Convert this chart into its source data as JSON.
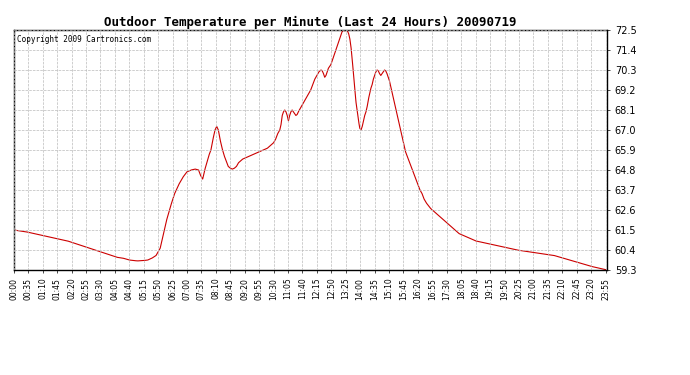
{
  "title": "Outdoor Temperature per Minute (Last 24 Hours) 20090719",
  "copyright_text": "Copyright 2009 Cartronics.com",
  "line_color": "#cc0000",
  "background_color": "#ffffff",
  "grid_color": "#aaaaaa",
  "yticks": [
    59.3,
    60.4,
    61.5,
    62.6,
    63.7,
    64.8,
    65.9,
    67.0,
    68.1,
    69.2,
    70.3,
    71.4,
    72.5
  ],
  "ylim": [
    59.3,
    72.5
  ],
  "total_minutes": 1440,
  "xtick_labels": [
    "00:00",
    "00:35",
    "01:10",
    "01:45",
    "02:20",
    "02:55",
    "03:30",
    "04:05",
    "04:40",
    "05:15",
    "05:50",
    "06:25",
    "07:00",
    "07:35",
    "08:10",
    "08:45",
    "09:20",
    "09:55",
    "10:30",
    "11:05",
    "11:40",
    "12:15",
    "12:50",
    "13:25",
    "14:00",
    "14:35",
    "15:10",
    "15:45",
    "16:20",
    "16:55",
    "17:30",
    "18:05",
    "18:40",
    "19:15",
    "19:50",
    "20:25",
    "21:00",
    "21:35",
    "22:10",
    "22:45",
    "23:20",
    "23:55"
  ],
  "control_points": [
    [
      0,
      61.5
    ],
    [
      15,
      61.45
    ],
    [
      30,
      61.4
    ],
    [
      50,
      61.3
    ],
    [
      70,
      61.2
    ],
    [
      90,
      61.1
    ],
    [
      110,
      61.0
    ],
    [
      130,
      60.9
    ],
    [
      150,
      60.75
    ],
    [
      170,
      60.6
    ],
    [
      190,
      60.45
    ],
    [
      210,
      60.3
    ],
    [
      230,
      60.15
    ],
    [
      250,
      60.0
    ],
    [
      265,
      59.95
    ],
    [
      280,
      59.85
    ],
    [
      290,
      59.82
    ],
    [
      300,
      59.8
    ],
    [
      315,
      59.82
    ],
    [
      325,
      59.85
    ],
    [
      335,
      59.95
    ],
    [
      345,
      60.1
    ],
    [
      355,
      60.5
    ],
    [
      362,
      61.2
    ],
    [
      370,
      62.0
    ],
    [
      380,
      62.8
    ],
    [
      390,
      63.5
    ],
    [
      400,
      64.0
    ],
    [
      410,
      64.4
    ],
    [
      420,
      64.7
    ],
    [
      430,
      64.8
    ],
    [
      440,
      64.85
    ],
    [
      448,
      64.8
    ],
    [
      453,
      64.5
    ],
    [
      458,
      64.3
    ],
    [
      463,
      64.8
    ],
    [
      468,
      65.2
    ],
    [
      473,
      65.6
    ],
    [
      478,
      65.9
    ],
    [
      483,
      66.5
    ],
    [
      488,
      67.0
    ],
    [
      492,
      67.2
    ],
    [
      496,
      67.0
    ],
    [
      500,
      66.5
    ],
    [
      505,
      66.0
    ],
    [
      510,
      65.6
    ],
    [
      515,
      65.3
    ],
    [
      520,
      65.0
    ],
    [
      525,
      64.9
    ],
    [
      530,
      64.85
    ],
    [
      535,
      64.9
    ],
    [
      540,
      65.0
    ],
    [
      545,
      65.2
    ],
    [
      550,
      65.3
    ],
    [
      555,
      65.4
    ],
    [
      560,
      65.45
    ],
    [
      565,
      65.5
    ],
    [
      570,
      65.55
    ],
    [
      575,
      65.6
    ],
    [
      580,
      65.65
    ],
    [
      585,
      65.7
    ],
    [
      590,
      65.75
    ],
    [
      595,
      65.8
    ],
    [
      600,
      65.85
    ],
    [
      605,
      65.9
    ],
    [
      610,
      65.95
    ],
    [
      615,
      66.0
    ],
    [
      620,
      66.1
    ],
    [
      625,
      66.2
    ],
    [
      630,
      66.3
    ],
    [
      635,
      66.5
    ],
    [
      640,
      66.8
    ],
    [
      645,
      67.0
    ],
    [
      648,
      67.3
    ],
    [
      651,
      67.8
    ],
    [
      654,
      68.0
    ],
    [
      657,
      68.1
    ],
    [
      660,
      68.0
    ],
    [
      663,
      67.8
    ],
    [
      666,
      67.5
    ],
    [
      669,
      67.8
    ],
    [
      672,
      68.0
    ],
    [
      675,
      68.1
    ],
    [
      678,
      68.0
    ],
    [
      681,
      67.9
    ],
    [
      684,
      67.8
    ],
    [
      687,
      67.85
    ],
    [
      690,
      68.0
    ],
    [
      695,
      68.2
    ],
    [
      700,
      68.4
    ],
    [
      705,
      68.6
    ],
    [
      710,
      68.8
    ],
    [
      715,
      69.0
    ],
    [
      720,
      69.2
    ],
    [
      725,
      69.5
    ],
    [
      730,
      69.8
    ],
    [
      735,
      70.0
    ],
    [
      740,
      70.2
    ],
    [
      745,
      70.3
    ],
    [
      748,
      70.25
    ],
    [
      751,
      70.1
    ],
    [
      754,
      69.9
    ],
    [
      757,
      70.0
    ],
    [
      760,
      70.2
    ],
    [
      763,
      70.4
    ],
    [
      766,
      70.5
    ],
    [
      769,
      70.6
    ],
    [
      772,
      70.8
    ],
    [
      775,
      71.0
    ],
    [
      778,
      71.2
    ],
    [
      781,
      71.4
    ],
    [
      784,
      71.6
    ],
    [
      787,
      71.8
    ],
    [
      790,
      72.0
    ],
    [
      793,
      72.2
    ],
    [
      796,
      72.4
    ],
    [
      800,
      72.5
    ],
    [
      803,
      72.45
    ],
    [
      806,
      72.5
    ],
    [
      809,
      72.45
    ],
    [
      812,
      72.3
    ],
    [
      815,
      72.0
    ],
    [
      818,
      71.5
    ],
    [
      821,
      70.8
    ],
    [
      824,
      70.0
    ],
    [
      827,
      69.2
    ],
    [
      830,
      68.5
    ],
    [
      833,
      68.0
    ],
    [
      836,
      67.5
    ],
    [
      839,
      67.1
    ],
    [
      842,
      67.0
    ],
    [
      845,
      67.2
    ],
    [
      848,
      67.5
    ],
    [
      851,
      67.8
    ],
    [
      854,
      68.0
    ],
    [
      857,
      68.3
    ],
    [
      860,
      68.7
    ],
    [
      863,
      69.0
    ],
    [
      866,
      69.3
    ],
    [
      869,
      69.5
    ],
    [
      872,
      69.8
    ],
    [
      875,
      70.0
    ],
    [
      878,
      70.2
    ],
    [
      881,
      70.3
    ],
    [
      884,
      70.25
    ],
    [
      887,
      70.1
    ],
    [
      890,
      70.0
    ],
    [
      893,
      70.1
    ],
    [
      896,
      70.2
    ],
    [
      899,
      70.3
    ],
    [
      902,
      70.25
    ],
    [
      905,
      70.1
    ],
    [
      908,
      69.9
    ],
    [
      911,
      69.7
    ],
    [
      914,
      69.4
    ],
    [
      917,
      69.1
    ],
    [
      920,
      68.8
    ],
    [
      923,
      68.5
    ],
    [
      926,
      68.2
    ],
    [
      929,
      67.9
    ],
    [
      932,
      67.6
    ],
    [
      935,
      67.3
    ],
    [
      938,
      67.0
    ],
    [
      941,
      66.7
    ],
    [
      944,
      66.4
    ],
    [
      947,
      66.1
    ],
    [
      950,
      65.8
    ],
    [
      955,
      65.5
    ],
    [
      960,
      65.2
    ],
    [
      965,
      64.9
    ],
    [
      970,
      64.6
    ],
    [
      975,
      64.3
    ],
    [
      980,
      64.0
    ],
    [
      985,
      63.7
    ],
    [
      990,
      63.5
    ],
    [
      995,
      63.2
    ],
    [
      1000,
      63.0
    ],
    [
      1010,
      62.7
    ],
    [
      1020,
      62.5
    ],
    [
      1030,
      62.3
    ],
    [
      1040,
      62.1
    ],
    [
      1050,
      61.9
    ],
    [
      1060,
      61.7
    ],
    [
      1070,
      61.5
    ],
    [
      1080,
      61.3
    ],
    [
      1090,
      61.2
    ],
    [
      1100,
      61.1
    ],
    [
      1110,
      61.0
    ],
    [
      1120,
      60.9
    ],
    [
      1140,
      60.8
    ],
    [
      1160,
      60.7
    ],
    [
      1180,
      60.6
    ],
    [
      1200,
      60.5
    ],
    [
      1220,
      60.4
    ],
    [
      1250,
      60.3
    ],
    [
      1280,
      60.2
    ],
    [
      1310,
      60.1
    ],
    [
      1340,
      59.9
    ],
    [
      1370,
      59.7
    ],
    [
      1400,
      59.5
    ],
    [
      1420,
      59.4
    ],
    [
      1435,
      59.32
    ],
    [
      1439,
      59.3
    ]
  ]
}
